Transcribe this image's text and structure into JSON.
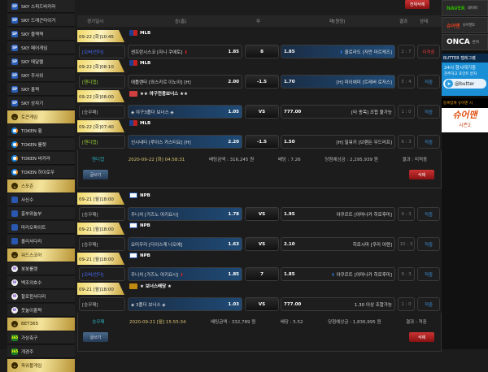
{
  "sidebar": {
    "items": [
      {
        "type": "item",
        "icon": "sp",
        "label": "SKY 스피드바카라"
      },
      {
        "type": "item",
        "icon": "sp",
        "label": "SKY 드래곤타이거"
      },
      {
        "type": "item",
        "icon": "sp",
        "label": "SKY 블랙잭"
      },
      {
        "type": "item",
        "icon": "sp",
        "label": "SKY 페어게임"
      },
      {
        "type": "item",
        "icon": "sp",
        "label": "SKY 메달렐"
      },
      {
        "type": "item",
        "icon": "sp",
        "label": "SKY 주사위"
      },
      {
        "type": "item",
        "icon": "sp",
        "label": "SKY 홀짝"
      },
      {
        "type": "item",
        "icon": "sp",
        "label": "SKY 상자기"
      },
      {
        "type": "header",
        "label": "토큰게임"
      },
      {
        "type": "item",
        "icon": "token",
        "label": "TOKEN 휠"
      },
      {
        "type": "item",
        "icon": "token",
        "label": "TOKEN 룰렛"
      },
      {
        "type": "item",
        "icon": "token",
        "label": "TOKEN 바카라"
      },
      {
        "type": "item",
        "icon": "token",
        "label": "TOKEN 하이로우"
      },
      {
        "type": "header",
        "label": "스포츤"
      },
      {
        "type": "item",
        "icon": "sq",
        "label": "사신수"
      },
      {
        "type": "item",
        "icon": "sq",
        "label": "흥부와놀부"
      },
      {
        "type": "item",
        "icon": "sq",
        "label": "마리오파이트"
      },
      {
        "type": "item",
        "icon": "sq",
        "label": "올리사다리"
      },
      {
        "type": "header",
        "label": "워드스코어"
      },
      {
        "type": "item",
        "icon": "w",
        "label": "봇봇룰렛"
      },
      {
        "type": "item",
        "icon": "w",
        "label": "백조의호수"
      },
      {
        "type": "item",
        "icon": "w",
        "label": "할로윈사다리"
      },
      {
        "type": "item",
        "icon": "w",
        "label": "웃놀이홀짝"
      },
      {
        "type": "header",
        "label": "BET365"
      },
      {
        "type": "item",
        "icon": "bet",
        "label": "가상축구"
      },
      {
        "type": "item",
        "icon": "bet",
        "label": "개경주"
      },
      {
        "type": "header",
        "label": "파워볼게임"
      }
    ]
  },
  "main": {
    "delete_all": "전체삭제",
    "columns": [
      "경기일시",
      "승(홈)",
      "무",
      "패(원정)",
      "결과",
      "상태"
    ],
    "slips": [
      {
        "games": [
          {
            "date": "09-22 [화]10:45",
            "league": "MLB",
            "flag": "mlb",
            "type": "[오버/언더]",
            "type_color": "#4a6cff",
            "home": "샌프란시스코 [자니 쿠에토]",
            "home_arrow": "up",
            "home_odds": "1.85",
            "draw": "8",
            "away_odds": "1.85",
            "away": "콜로라도 [저먼 마르케즈]",
            "away_arrow": "down",
            "score": "2 : 7",
            "status": "미적중",
            "status_color": "#e03a3a",
            "selected": "away"
          },
          {
            "date": "09-22 [화]08:10",
            "league": "MLB",
            "flag": "mlb",
            "type": "[핸디캡]",
            "type_color": "#9bd33a",
            "home": "애틀랜타 [와스카르 이노아] [H]",
            "home_odds": "2.00",
            "draw": "-1.5",
            "away_odds": "1.70",
            "away": "[H] 마이애미 [트레버 로저스]",
            "score": "5 : 4",
            "status": "적중",
            "status_color": "#3a8fd8",
            "selected": "away"
          },
          {
            "date": "09-22 [화]08:00",
            "league": "★★ 야구전용보너스 ★★",
            "flag": "bonus",
            "type": "[승무패]",
            "type_color": "#bbb",
            "home": "◈ 야구3폴더 보너스 ◈",
            "home_odds": "1.05",
            "draw": "VS",
            "away_odds": "777.00",
            "away": "[타 종목] 조합 불가능",
            "score": "1 : 0",
            "status": "적중",
            "status_color": "#3a8fd8",
            "selected": "home"
          },
          {
            "date": "09-22 [화]07:40",
            "league": "MLB",
            "flag": "mlb",
            "type": "[핸디캡]",
            "type_color": "#9bd33a",
            "home": "신시내티 [루이스 카스티요] [H]",
            "home_odds": "2.20",
            "draw": "-1.5",
            "away_odds": "1.50",
            "away": "[H] 밀워키 [브랜든 우드러프]",
            "score": "6 : 3",
            "status": "적중",
            "status_color": "#3a8fd8",
            "selected": "home"
          }
        ],
        "summary": {
          "type": "핸디캡",
          "datetime": "2020-09-22 [화] 04:58:31",
          "bet": "배팅금액 : 316,245 원",
          "odds": "배당 : 7.26",
          "expected": "당첨예상금 : 2,295,939 원",
          "result": "결과 : 미적중"
        },
        "post": "글쓰기",
        "delete": "삭제"
      },
      {
        "games": [
          {
            "date": "09-21 [월]18:00",
            "league": "NPB",
            "flag": "npb",
            "type": "[승무패]",
            "type_color": "#bbb",
            "home": "주니치 [가즈노 야키요시]",
            "home_odds": "1.78",
            "draw": "VS",
            "away_odds": "1.95",
            "away": "야쿠르트 [야마나카 히로후미]",
            "score": "9 : 3",
            "status": "적중",
            "status_color": "#3a8fd8",
            "selected": "home"
          },
          {
            "date": "09-21 [월]18:00",
            "league": "NPB",
            "flag": "npb",
            "type": "[승무패]",
            "type_color": "#bbb",
            "home": "요미우리 [다이스케 나오에]",
            "home_odds": "1.63",
            "draw": "VS",
            "away_odds": "2.10",
            "away": "히로시마 [쿠리 아렌]",
            "score": "10 : 3",
            "status": "적중",
            "status_color": "#3a8fd8",
            "selected": "home"
          },
          {
            "date": "09-21 [월]18:00",
            "league": "NPB",
            "flag": "npb",
            "type": "[오버/언더]",
            "type_color": "#4a6cff",
            "home": "주니치 [가즈노 야키요시]",
            "home_arrow": "up",
            "home_odds": "1.85",
            "draw": "7",
            "away_odds": "1.85",
            "away": "야쿠르트 [야마나카 히로후미]",
            "away_arrow": "down",
            "score": "9 : 3",
            "status": "적중",
            "status_color": "#3a8fd8",
            "selected": "home"
          },
          {
            "date": "09-21 [월]18:00",
            "league": "★ 보너스배당 ★",
            "flag": "bonus2",
            "type": "[승무패]",
            "type_color": "#bbb",
            "home": "◈ 3폴더 보너스 ◈",
            "home_odds": "1.03",
            "draw": "VS",
            "away_odds": "777.00",
            "away": "1.30 이상 조합가능",
            "score": "1 : 0",
            "status": "적중",
            "status_color": "#3a8fd8",
            "selected": "home"
          }
        ],
        "summary": {
          "type": "승무패",
          "datetime": "2020-09-21 [월] 15:55:34",
          "bet": "배팅금액 : 332,789 원",
          "odds": "배당 : 5.52",
          "expected": "당첨예상금 : 1,836,995 원",
          "result": "결과 : 적중"
        },
        "post": "글쓰기",
        "delete": "삭제"
      }
    ]
  },
  "right": {
    "banners": [
      {
        "label": "NAVER",
        "sub": "네이버",
        "color": "#2db400"
      },
      {
        "label": "슈어맨",
        "sub": "슈어맨2",
        "color": "#e04020"
      },
      {
        "label": "ONCA",
        "sub": "온카",
        "color": "#ffffff"
      }
    ],
    "telegram": {
      "title": "BUTTER 텔레그램",
      "line1": "24시 항시대기중",
      "line2": "친추하고 포인트 받자",
      "handle": "@butter"
    },
    "promo": {
      "title": "등록업체 슈어맨 시",
      "brand": "슈어맨",
      "sub": "시즌2"
    }
  },
  "colors": {
    "gold": "#e8cf6e",
    "home_select": "#1f4a75",
    "red_button": "#b02020"
  }
}
